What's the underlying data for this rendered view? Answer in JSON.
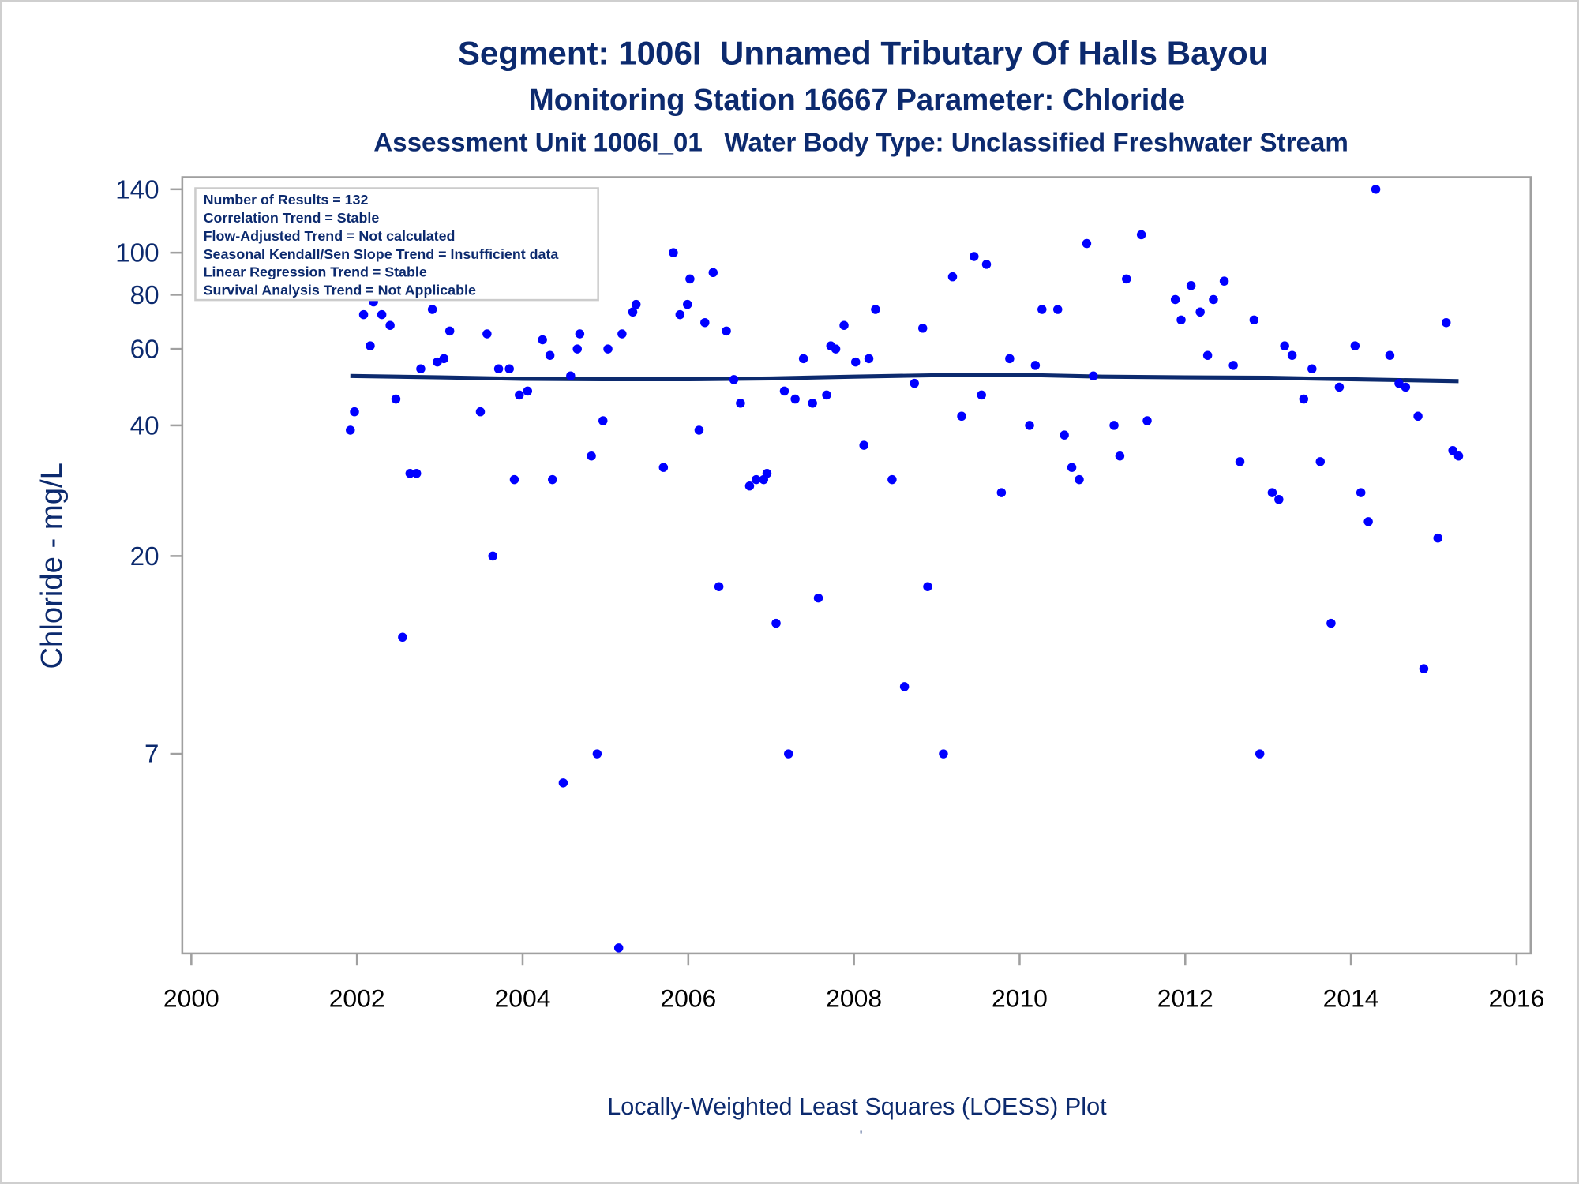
{
  "chart_data": {
    "type": "scatter",
    "title": "Segment: 1006I  Unnamed Tributary Of Halls Bayou",
    "subtitle": "Monitoring Station 16667 Parameter: Chloride",
    "subtitle2": "Assessment Unit 1006I_01   Water Body Type: Unclassified Freshwater Stream",
    "xlabel": "Locally-Weighted Least Squares (LOESS) Plot",
    "footnote": "'",
    "ylabel": "Chloride - mg/L",
    "yscale": "log",
    "xlim": [
      1999.9,
      2016.2
    ],
    "ylim": [
      2.43,
      149
    ],
    "x_ticks": [
      "2000",
      "2002",
      "2004",
      "2006",
      "2008",
      "2010",
      "2012",
      "2014",
      "2016"
    ],
    "y_ticks": [
      "7",
      "20",
      "40",
      "60",
      "80",
      "100",
      "140"
    ],
    "grid": false,
    "legend_placement": "top-left",
    "legend": [
      "Number of Results = 132",
      "Correlation Trend = Stable",
      "Flow-Adjusted Trend = Not calculated",
      "Seasonal Kendall/Sen Slope Trend = Insufficient data",
      "Linear Regression Trend = Stable",
      "Survival Analysis Trend = Not Applicable"
    ],
    "colors": {
      "points": "#0000ff",
      "loess": "#0c2a6e",
      "text": "#0c2a6e",
      "frame": "#a0a0a0"
    },
    "series": [
      {
        "name": "Chloride results",
        "type": "scatter",
        "points": [
          [
            2001.92,
            39
          ],
          [
            2001.97,
            43
          ],
          [
            2002.08,
            72
          ],
          [
            2002.16,
            61
          ],
          [
            2002.2,
            77
          ],
          [
            2002.3,
            72
          ],
          [
            2002.4,
            68
          ],
          [
            2002.47,
            46
          ],
          [
            2002.55,
            13
          ],
          [
            2002.64,
            31
          ],
          [
            2002.72,
            31
          ],
          [
            2002.77,
            54
          ],
          [
            2002.91,
            74
          ],
          [
            2002.97,
            56
          ],
          [
            2003.05,
            57
          ],
          [
            2003.12,
            66
          ],
          [
            2003.31,
            80
          ],
          [
            2003.37,
            91
          ],
          [
            2003.49,
            43
          ],
          [
            2003.57,
            65
          ],
          [
            2003.64,
            20
          ],
          [
            2003.71,
            54
          ],
          [
            2003.84,
            54
          ],
          [
            2003.9,
            30
          ],
          [
            2003.96,
            47
          ],
          [
            2004.06,
            48
          ],
          [
            2004.24,
            63
          ],
          [
            2004.33,
            58
          ],
          [
            2004.36,
            30
          ],
          [
            2004.49,
            6
          ],
          [
            2004.58,
            52
          ],
          [
            2004.66,
            60
          ],
          [
            2004.69,
            65
          ],
          [
            2004.83,
            34
          ],
          [
            2004.9,
            7
          ],
          [
            2004.97,
            41
          ],
          [
            2005.03,
            60
          ],
          [
            2005.16,
            2.5
          ],
          [
            2005.2,
            65
          ],
          [
            2005.33,
            73
          ],
          [
            2005.37,
            76
          ],
          [
            2005.7,
            32
          ],
          [
            2005.82,
            100
          ],
          [
            2005.9,
            72
          ],
          [
            2005.99,
            76
          ],
          [
            2006.02,
            87
          ],
          [
            2006.13,
            39
          ],
          [
            2006.2,
            69
          ],
          [
            2006.3,
            90
          ],
          [
            2006.37,
            17
          ],
          [
            2006.46,
            66
          ],
          [
            2006.55,
            51
          ],
          [
            2006.63,
            45
          ],
          [
            2006.74,
            29
          ],
          [
            2006.82,
            30
          ],
          [
            2006.91,
            30
          ],
          [
            2006.95,
            31
          ],
          [
            2007.06,
            14
          ],
          [
            2007.16,
            48
          ],
          [
            2007.21,
            7
          ],
          [
            2007.29,
            46
          ],
          [
            2007.39,
            57
          ],
          [
            2007.5,
            45
          ],
          [
            2007.57,
            16
          ],
          [
            2007.67,
            47
          ],
          [
            2007.72,
            61
          ],
          [
            2007.78,
            60
          ],
          [
            2007.88,
            68
          ],
          [
            2008.02,
            56
          ],
          [
            2008.12,
            36
          ],
          [
            2008.18,
            57
          ],
          [
            2008.26,
            74
          ],
          [
            2008.46,
            30
          ],
          [
            2008.61,
            10
          ],
          [
            2008.73,
            50
          ],
          [
            2008.83,
            67
          ],
          [
            2008.89,
            17
          ],
          [
            2009.08,
            7
          ],
          [
            2009.19,
            88
          ],
          [
            2009.3,
            42
          ],
          [
            2009.45,
            98
          ],
          [
            2009.54,
            47
          ],
          [
            2009.6,
            94
          ],
          [
            2009.78,
            28
          ],
          [
            2009.88,
            57
          ],
          [
            2010.12,
            40
          ],
          [
            2010.19,
            55
          ],
          [
            2010.27,
            74
          ],
          [
            2010.46,
            74
          ],
          [
            2010.54,
            38
          ],
          [
            2010.63,
            32
          ],
          [
            2010.72,
            30
          ],
          [
            2010.81,
            105
          ],
          [
            2010.89,
            52
          ],
          [
            2011.14,
            40
          ],
          [
            2011.21,
            34
          ],
          [
            2011.29,
            87
          ],
          [
            2011.47,
            110
          ],
          [
            2011.54,
            41
          ],
          [
            2011.88,
            78
          ],
          [
            2011.95,
            70
          ],
          [
            2012.07,
            84
          ],
          [
            2012.18,
            73
          ],
          [
            2012.27,
            58
          ],
          [
            2012.34,
            78
          ],
          [
            2012.47,
            86
          ],
          [
            2012.58,
            55
          ],
          [
            2012.66,
            33
          ],
          [
            2012.83,
            70
          ],
          [
            2012.9,
            7
          ],
          [
            2013.05,
            28
          ],
          [
            2013.13,
            27
          ],
          [
            2013.2,
            61
          ],
          [
            2013.29,
            58
          ],
          [
            2013.43,
            46
          ],
          [
            2013.53,
            54
          ],
          [
            2013.63,
            33
          ],
          [
            2013.76,
            14
          ],
          [
            2013.86,
            49
          ],
          [
            2014.05,
            61
          ],
          [
            2014.12,
            28
          ],
          [
            2014.21,
            24
          ],
          [
            2014.3,
            140
          ],
          [
            2014.47,
            58
          ],
          [
            2014.58,
            50
          ],
          [
            2014.66,
            49
          ],
          [
            2014.81,
            42
          ],
          [
            2014.88,
            11
          ],
          [
            2015.05,
            22
          ],
          [
            2015.15,
            69
          ],
          [
            2015.23,
            35
          ],
          [
            2015.3,
            34
          ]
        ]
      },
      {
        "name": "LOESS fit",
        "type": "line",
        "points": [
          [
            2001.92,
            52
          ],
          [
            2003,
            51.6
          ],
          [
            2004,
            51.2
          ],
          [
            2005,
            51.1
          ],
          [
            2006,
            51.1
          ],
          [
            2007,
            51.3
          ],
          [
            2008,
            51.8
          ],
          [
            2009,
            52.2
          ],
          [
            2010,
            52.3
          ],
          [
            2011,
            51.8
          ],
          [
            2012,
            51.6
          ],
          [
            2013,
            51.5
          ],
          [
            2014,
            51.1
          ],
          [
            2015.3,
            50.6
          ]
        ]
      }
    ]
  }
}
